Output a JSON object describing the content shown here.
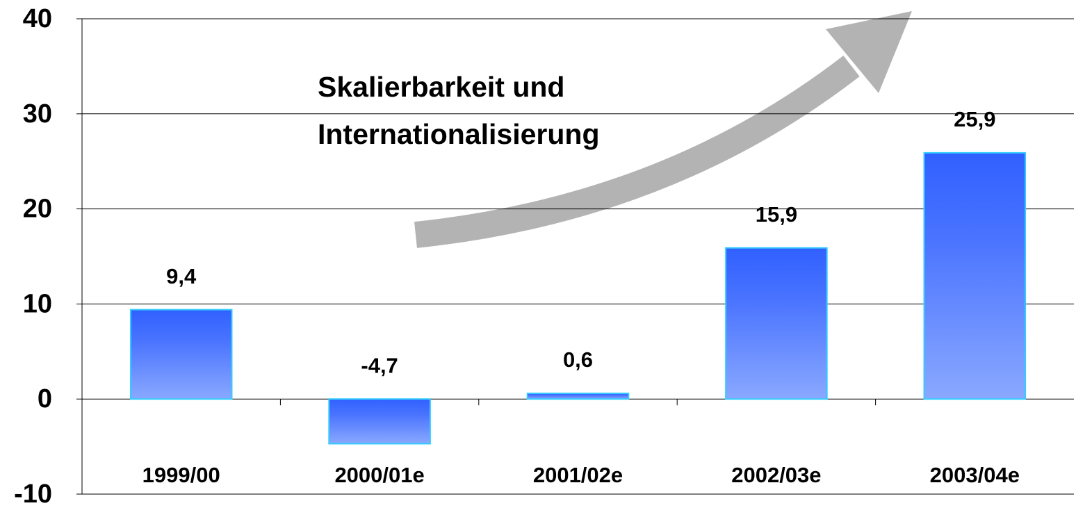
{
  "chart_data": {
    "type": "bar",
    "annotation": [
      "Skalierbarkeit und",
      "Internationalisierung"
    ],
    "categories": [
      "1999/00",
      "2000/01e",
      "2001/02e",
      "2002/03e",
      "2003/04e"
    ],
    "values": [
      9.4,
      -4.7,
      0.6,
      15.9,
      25.9
    ],
    "value_labels": [
      "9,4",
      "-4,7",
      "0,6",
      "15,9",
      "25,9"
    ],
    "color": "#3a66ff",
    "ylim": [
      -10,
      40
    ],
    "yticks": [
      -10,
      0,
      10,
      20,
      30,
      40
    ],
    "grid": true
  }
}
